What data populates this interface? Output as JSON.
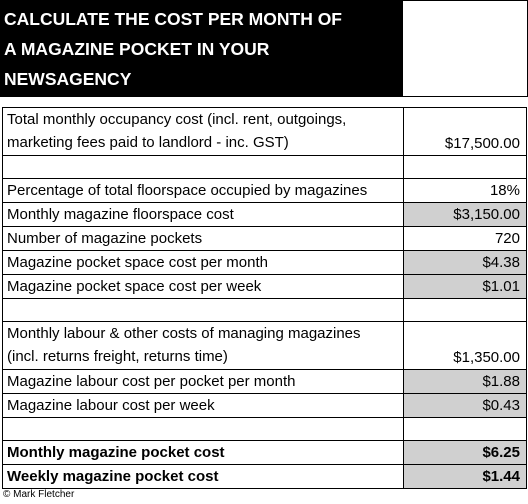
{
  "header": {
    "title": [
      "CALCULATE THE COST PER MONTH OF",
      "A MAGAZINE POCKET IN YOUR",
      "NEWSAGENCY"
    ]
  },
  "table": {
    "sections": [
      {
        "rows": [
          {
            "label": [
              "Total monthly occupancy cost (incl. rent, outgoings,",
              "marketing fees paid to landlord - inc. GST)"
            ],
            "value": "$17,500.00",
            "shaded": false,
            "bold": false
          }
        ]
      },
      {
        "rows": [
          {
            "label": [
              "Percentage of total floorspace occupied by magazines"
            ],
            "value": "18%",
            "shaded": false,
            "bold": false
          },
          {
            "label": [
              "Monthly magazine floorspace cost"
            ],
            "value": "$3,150.00",
            "shaded": true,
            "bold": false
          },
          {
            "label": [
              "Number of magazine pockets"
            ],
            "value": "720",
            "shaded": false,
            "bold": false
          },
          {
            "label": [
              "Magazine pocket space cost per month"
            ],
            "value": "$4.38",
            "shaded": true,
            "bold": false
          },
          {
            "label": [
              "Magazine pocket space cost per week"
            ],
            "value": "$1.01",
            "shaded": true,
            "bold": false
          }
        ]
      },
      {
        "rows": [
          {
            "label": [
              "Monthly labour & other costs of managing magazines",
              "(incl.  returns freight, returns time)"
            ],
            "value": "$1,350.00",
            "shaded": false,
            "bold": false
          },
          {
            "label": [
              "Magazine labour cost per pocket per month"
            ],
            "value": "$1.88",
            "shaded": true,
            "bold": false
          },
          {
            "label": [
              "Magazine labour cost per week"
            ],
            "value": "$0.43",
            "shaded": true,
            "bold": false
          }
        ]
      },
      {
        "rows": [
          {
            "label": [
              "Monthly magazine pocket cost"
            ],
            "value": "$6.25",
            "shaded": true,
            "bold": true
          },
          {
            "label": [
              "Weekly magazine pocket cost"
            ],
            "value": "$1.44",
            "shaded": true,
            "bold": true
          }
        ]
      }
    ]
  },
  "footer": {
    "credit": "© Mark Fletcher"
  }
}
